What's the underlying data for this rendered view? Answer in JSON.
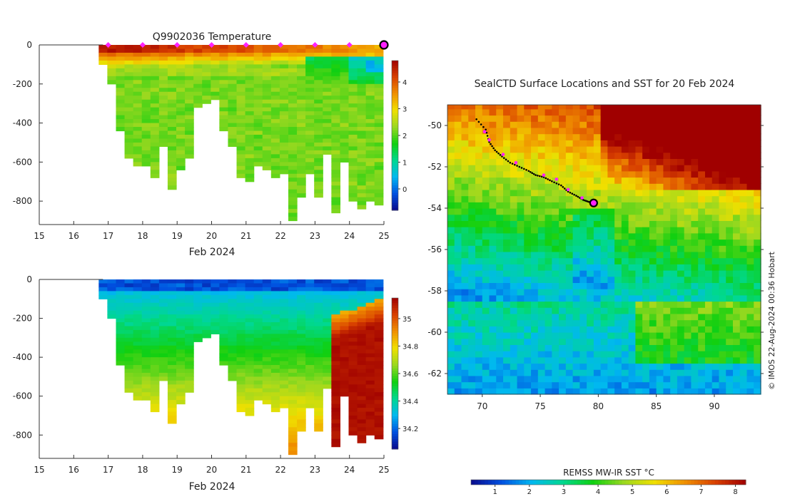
{
  "chart_data": [
    {
      "type": "heatmap",
      "title": "Q9902036  Temperature",
      "xlabel": "Feb 2024",
      "ylabel": "",
      "xlim": [
        15,
        25
      ],
      "ylim": [
        -920,
        0
      ],
      "xticks": [
        "15",
        "16",
        "17",
        "18",
        "19",
        "20",
        "21",
        "22",
        "23",
        "24",
        "25"
      ],
      "yticks": [
        "0",
        "-200",
        "-400",
        "-600",
        "-800"
      ],
      "colorbar": {
        "min": -0.8,
        "max": 4.8,
        "ticks": [
          "0",
          "1",
          "2",
          "3",
          "4"
        ],
        "tick_values": [
          0,
          1,
          2,
          3,
          4
        ],
        "colors": [
          "#0a0a8c",
          "#0050e0",
          "#00b8f0",
          "#00d890",
          "#10d010",
          "#9ad820",
          "#f0e000",
          "#f09000",
          "#d84000",
          "#a00000"
        ]
      },
      "marker_days": [
        17,
        18,
        19,
        20,
        21,
        22,
        23,
        24
      ],
      "final_marker_day": 25,
      "profiles": {
        "day": [
          16.85,
          17.1,
          17.35,
          17.6,
          17.85,
          18.1,
          18.35,
          18.6,
          18.85,
          19.1,
          19.35,
          19.6,
          19.85,
          20.1,
          20.35,
          20.6,
          20.85,
          21.1,
          21.35,
          21.6,
          21.85,
          22.1,
          22.35,
          22.6,
          22.85,
          23.1,
          23.35,
          23.6,
          23.85,
          24.1,
          24.35,
          24.6,
          24.85
        ],
        "max_depth": [
          100,
          190,
          440,
          570,
          605,
          620,
          680,
          520,
          740,
          640,
          570,
          320,
          300,
          280,
          440,
          520,
          680,
          700,
          620,
          630,
          680,
          660,
          900,
          780,
          650,
          770,
          560,
          850,
          600,
          800,
          840,
          790,
          810
        ]
      },
      "scheme": "temperature"
    },
    {
      "type": "heatmap",
      "title": "",
      "xlabel": "Feb 2024",
      "ylabel": "",
      "xlim": [
        15,
        25
      ],
      "ylim": [
        -920,
        0
      ],
      "xticks": [
        "15",
        "16",
        "17",
        "18",
        "19",
        "20",
        "21",
        "22",
        "23",
        "24",
        "25"
      ],
      "yticks": [
        "0",
        "-200",
        "-400",
        "-600",
        "-800"
      ],
      "colorbar": {
        "min": 34.05,
        "max": 35.15,
        "ticks": [
          "34.2",
          "34.4",
          "34.6",
          "34.8",
          "35"
        ],
        "tick_values": [
          34.2,
          34.4,
          34.6,
          34.8,
          35.0
        ],
        "colors": [
          "#0a0a8c",
          "#0050e0",
          "#00b8f0",
          "#00d890",
          "#10d010",
          "#9ad820",
          "#f0e000",
          "#f09000",
          "#d84000",
          "#a00000"
        ]
      },
      "scheme": "salinity"
    },
    {
      "type": "heatmap",
      "title": "SealCTD Surface Locations and SST for 20 Feb 2024",
      "xlim": [
        67,
        94
      ],
      "ylim": [
        -63,
        -49
      ],
      "xticks": [
        "70",
        "75",
        "80",
        "85",
        "90"
      ],
      "xtick_values": [
        70,
        75,
        80,
        85,
        90
      ],
      "yticks": [
        "-50",
        "-52",
        "-54",
        "-56",
        "-58",
        "-60",
        "-62"
      ],
      "ytick_values": [
        -50,
        -52,
        -54,
        -56,
        -58,
        -60,
        -62
      ],
      "track": {
        "lon": [
          69.5,
          70.3,
          70.6,
          71.1,
          71.7,
          72.4,
          73.2,
          74.0,
          74.6,
          75.3,
          76.0,
          76.8,
          77.4,
          78.1,
          78.7,
          79.2,
          79.6
        ],
        "lat": [
          -49.7,
          -50.2,
          -50.8,
          -51.2,
          -51.5,
          -51.8,
          -52.0,
          -52.2,
          -52.4,
          -52.5,
          -52.7,
          -52.9,
          -53.2,
          -53.4,
          -53.6,
          -53.7,
          -53.75
        ]
      },
      "magenta_points": {
        "lon": [
          70.6,
          70.2,
          71.8,
          72.9,
          75.3,
          76.4,
          77.4,
          78.6
        ],
        "lat": [
          -50.7,
          -50.3,
          -51.4,
          -51.8,
          -52.4,
          -52.6,
          -53.1,
          -53.5
        ]
      },
      "current_position": {
        "lon": 79.6,
        "lat": -53.75
      },
      "colorbar_label": "REMSS MW-IR SST °C",
      "colorbar_ticks": [
        "1",
        "2",
        "3",
        "4",
        "5",
        "6",
        "7",
        "8"
      ],
      "colorbar_tick_values": [
        1,
        2,
        3,
        4,
        5,
        6,
        7,
        8
      ],
      "colorbar_range": [
        0.3,
        8.3
      ],
      "credit": "© IMOS 22-Aug-2024 00:36 Hobart"
    }
  ]
}
